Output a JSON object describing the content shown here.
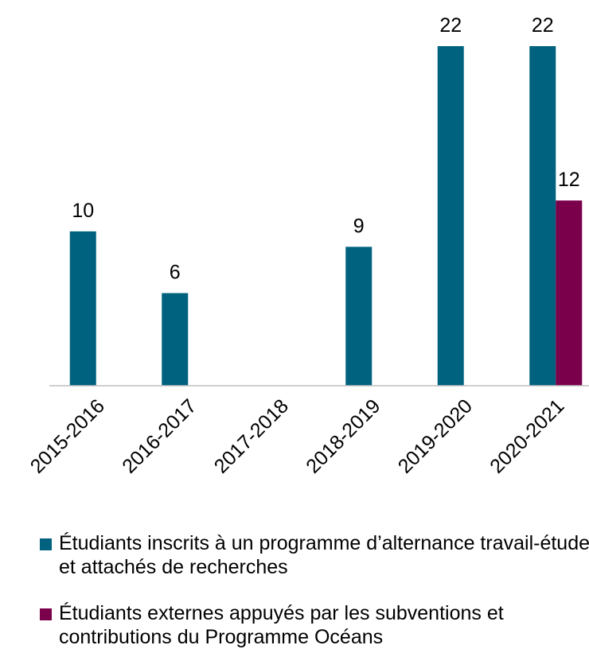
{
  "chart_data": {
    "type": "bar",
    "categories": [
      "2015-2016",
      "2016-2017",
      "2017-2018",
      "2018-2019",
      "2019-2020",
      "2020-2021"
    ],
    "series": [
      {
        "name": "Étudiants inscrits à un programme d’alternance travail-études et attachés de recherches",
        "color": "#00627f",
        "values": [
          10,
          6,
          null,
          9,
          22,
          22
        ]
      },
      {
        "name": "Étudiants externes appuyés par les subventions et contributions du Programme Océans",
        "color": "#7b004c",
        "values": [
          null,
          null,
          null,
          null,
          null,
          12
        ]
      }
    ]
  }
}
